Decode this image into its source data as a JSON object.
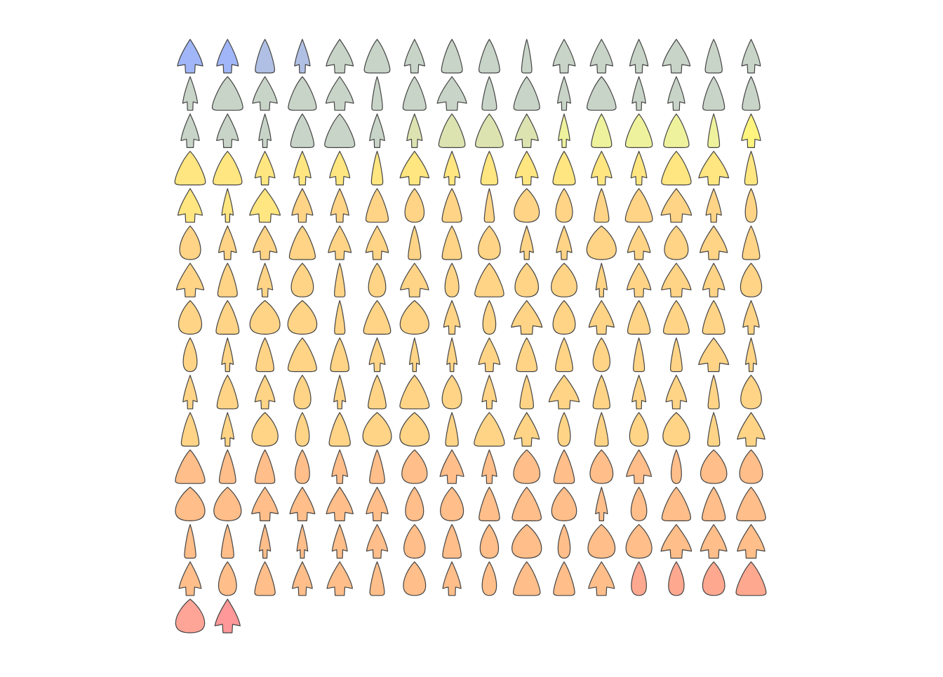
{
  "panel": {
    "rows": [
      [
        "#a0b6f8",
        "#a0b6f8",
        "#b0c0e4",
        "#b0c0e4",
        "#c8d4c8",
        "#c8d4c8",
        "#c8d4c8",
        "#c8d4c8",
        "#c8d4c8",
        "#c8d4c8",
        "#c8d4c8",
        "#c8d4c8",
        "#c8d4c8",
        "#c8d4c8",
        "#c8d4c8",
        "#c8d4c8"
      ],
      [
        "#c8d4c8",
        "#c8d4c8",
        "#c8d4c8",
        "#c8d4c8",
        "#c8d4c8",
        "#c8d4c8",
        "#c8d4c8",
        "#c8d4c8",
        "#c8d4c8",
        "#c8d4c8",
        "#c8d4c8",
        "#c8d4c8",
        "#c8d4c8",
        "#c8d4c8",
        "#c8d4c8",
        "#c8d4c8"
      ],
      [
        "#c8d4c8",
        "#c8d4c8",
        "#c8d4c8",
        "#c8d4c8",
        "#c8d4c8",
        "#c8d4c8",
        "#dde3b0",
        "#dde3b0",
        "#dde3b0",
        "#dde3b0",
        "#eef29c",
        "#eef29c",
        "#eef29c",
        "#eef29c",
        "#eef29c",
        "#fff47e"
      ],
      [
        "#ffe680",
        "#ffe680",
        "#ffe680",
        "#ffe680",
        "#ffe680",
        "#ffe680",
        "#ffe680",
        "#ffe680",
        "#ffe680",
        "#ffe680",
        "#ffe680",
        "#ffe680",
        "#ffe680",
        "#ffe680",
        "#ffe680",
        "#ffe680"
      ],
      [
        "#ffe680",
        "#ffe680",
        "#ffe680",
        "#ffd486",
        "#ffd486",
        "#ffd486",
        "#ffd486",
        "#ffd486",
        "#ffd486",
        "#ffd486",
        "#ffd486",
        "#ffd486",
        "#ffd486",
        "#ffd486",
        "#ffd486",
        "#ffd486"
      ],
      [
        "#ffd486",
        "#ffd486",
        "#ffd486",
        "#ffd486",
        "#ffd486",
        "#ffd486",
        "#ffd486",
        "#ffd486",
        "#ffd486",
        "#ffd486",
        "#ffd486",
        "#ffd486",
        "#ffd486",
        "#ffd486",
        "#ffd486",
        "#ffd486"
      ],
      [
        "#ffd486",
        "#ffd486",
        "#ffd486",
        "#ffd486",
        "#ffd486",
        "#ffd486",
        "#ffd486",
        "#ffd486",
        "#ffd486",
        "#ffd486",
        "#ffd486",
        "#ffd486",
        "#ffd486",
        "#ffd486",
        "#ffd486",
        "#ffd486"
      ],
      [
        "#ffd486",
        "#ffd486",
        "#ffd486",
        "#ffd486",
        "#ffd486",
        "#ffd486",
        "#ffd486",
        "#ffd486",
        "#ffd486",
        "#ffd486",
        "#ffd486",
        "#ffd486",
        "#ffd486",
        "#ffd486",
        "#ffd486",
        "#ffd486"
      ],
      [
        "#ffd486",
        "#ffd486",
        "#ffd486",
        "#ffd486",
        "#ffd486",
        "#ffd486",
        "#ffd486",
        "#ffd486",
        "#ffd486",
        "#ffd486",
        "#ffd486",
        "#ffd486",
        "#ffd486",
        "#ffd486",
        "#ffd486",
        "#ffd486"
      ],
      [
        "#ffd486",
        "#ffd486",
        "#ffd486",
        "#ffd486",
        "#ffd486",
        "#ffd486",
        "#ffd486",
        "#ffd486",
        "#ffd486",
        "#ffd486",
        "#ffd486",
        "#ffd486",
        "#ffd486",
        "#ffd486",
        "#ffd486",
        "#ffd486"
      ],
      [
        "#ffd486",
        "#ffd486",
        "#ffd486",
        "#ffd486",
        "#ffd486",
        "#ffd486",
        "#ffd486",
        "#ffd486",
        "#ffd486",
        "#ffd486",
        "#ffd486",
        "#ffd486",
        "#ffd486",
        "#ffd486",
        "#ffd486",
        "#ffd486"
      ],
      [
        "#ffbe8a",
        "#ffbe8a",
        "#ffbe8a",
        "#ffbe8a",
        "#ffbe8a",
        "#ffbe8a",
        "#ffbe8a",
        "#ffbe8a",
        "#ffbe8a",
        "#ffbe8a",
        "#ffbe8a",
        "#ffbe8a",
        "#ffbe8a",
        "#ffbe8a",
        "#ffbe8a",
        "#ffbe8a"
      ],
      [
        "#ffbe8a",
        "#ffbe8a",
        "#ffbe8a",
        "#ffbe8a",
        "#ffbe8a",
        "#ffbe8a",
        "#ffbe8a",
        "#ffbe8a",
        "#ffbe8a",
        "#ffbe8a",
        "#ffbe8a",
        "#ffbe8a",
        "#ffbe8a",
        "#ffbe8a",
        "#ffbe8a",
        "#ffbe8a"
      ],
      [
        "#ffbe8a",
        "#ffbe8a",
        "#ffbe8a",
        "#ffbe8a",
        "#ffbe8a",
        "#ffbe8a",
        "#ffbe8a",
        "#ffbe8a",
        "#ffbe8a",
        "#ffbe8a",
        "#ffbe8a",
        "#ffbe8a",
        "#ffbe8a",
        "#ffbe8a",
        "#ffbe8a",
        "#ffbe8a"
      ],
      [
        "#ffbe8a",
        "#ffbe8a",
        "#ffbe8a",
        "#ffbe8a",
        "#ffbe8a",
        "#ffbe8a",
        "#ffbe8a",
        "#ffbe8a",
        "#ffbe8a",
        "#ffbe8a",
        "#ffbe8a",
        "#ffbe8a",
        "#ffa890",
        "#ffa890",
        "#ffa890",
        "#ffa890"
      ],
      [
        "#ffa597",
        "#ff9898"
      ]
    ]
  }
}
